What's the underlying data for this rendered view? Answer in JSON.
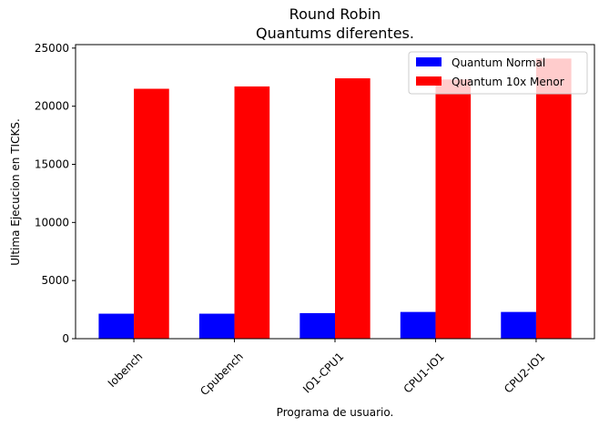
{
  "chart_data": {
    "type": "bar",
    "title": "Round Robin",
    "subtitle": "Quantums diferentes.",
    "xlabel": "Programa de usuario.",
    "ylabel": "Ultima Ejecucion en TICKS.",
    "categories": [
      "Iobench",
      "Cpubench",
      "IO1-CPU1",
      "CPU1-IO1",
      "CPU2-IO1"
    ],
    "series": [
      {
        "name": "Quantum Normal",
        "color": "#0000ff",
        "values": [
          2150,
          2150,
          2200,
          2300,
          2300
        ]
      },
      {
        "name": "Quantum 10x Menor",
        "color": "#ff0000",
        "values": [
          21500,
          21700,
          22400,
          22300,
          24100
        ]
      }
    ],
    "ylim": [
      0,
      25300
    ],
    "yticks": [
      0,
      5000,
      10000,
      15000,
      20000,
      25000
    ],
    "grid": false,
    "legend_position": "top-right",
    "xtick_rotation_deg": 45
  }
}
